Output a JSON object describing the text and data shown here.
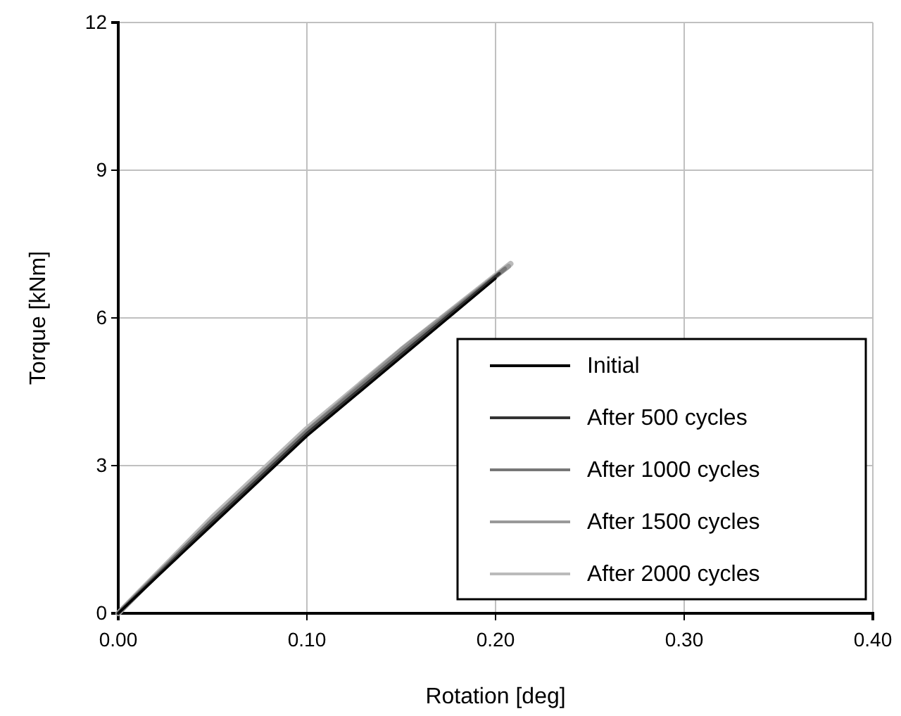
{
  "chart_data": {
    "type": "line",
    "xlabel": "Rotation [deg]",
    "ylabel": "Torque [kNm]",
    "xlim": [
      0,
      0.4
    ],
    "xticks": [
      {
        "value": 0,
        "label": "0.00"
      },
      {
        "value": 0.1,
        "label": "0.10"
      },
      {
        "value": 0.2,
        "label": "0.20"
      },
      {
        "value": 0.3,
        "label": "0.30"
      },
      {
        "value": 0.4,
        "label": "0.40"
      }
    ],
    "ylim": [
      0,
      12
    ],
    "yticks": [
      0,
      3,
      6,
      9,
      12
    ],
    "grid": true,
    "legend": "bottom right",
    "marker": "none",
    "line_style": "solid",
    "series": [
      {
        "name": "Initial",
        "color": "#000000",
        "x": [
          0,
          0.05,
          0.1,
          0.15,
          0.2
        ],
        "values": [
          0,
          1.8,
          3.6,
          5.2,
          6.8
        ]
      },
      {
        "name": "After 500 cycles",
        "color": "#333333",
        "x": [
          0,
          0.05,
          0.1,
          0.15,
          0.202
        ],
        "values": [
          0,
          1.85,
          3.65,
          5.25,
          6.9
        ]
      },
      {
        "name": "After 1000 cycles",
        "color": "#777777",
        "x": [
          0,
          0.05,
          0.1,
          0.15,
          0.205
        ],
        "values": [
          0,
          1.9,
          3.7,
          5.3,
          7.0
        ]
      },
      {
        "name": "After 1500 cycles",
        "color": "#999999",
        "x": [
          0,
          0.05,
          0.1,
          0.15,
          0.207
        ],
        "values": [
          0,
          1.9,
          3.7,
          5.35,
          7.05
        ]
      },
      {
        "name": "After 2000 cycles",
        "color": "#bbbbbb",
        "x": [
          0,
          0.05,
          0.1,
          0.15,
          0.208
        ],
        "values": [
          0,
          1.95,
          3.75,
          5.35,
          7.1
        ]
      }
    ]
  }
}
